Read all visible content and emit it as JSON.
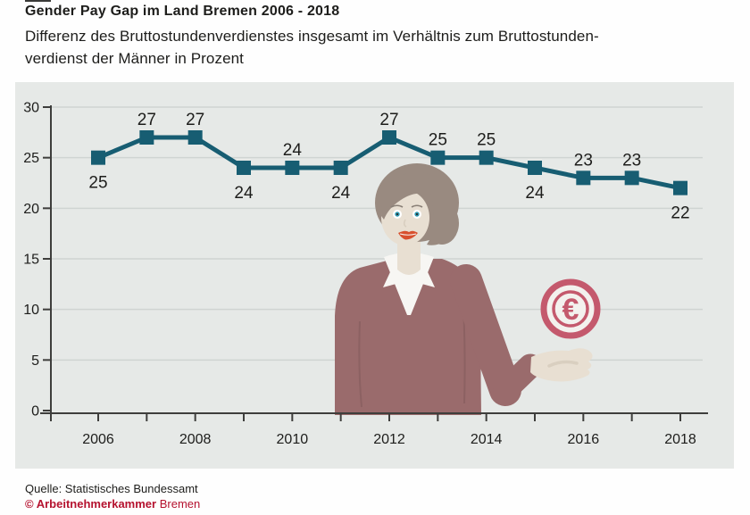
{
  "header": {
    "title": "Gender Pay Gap im Land Bremen 2006 - 2018",
    "subtitle_line1": "Differenz des Bruttostundenverdienstes insgesamt im Verhältnis zum Bruttostunden-",
    "subtitle_line2": "verdienst der Männer in Prozent"
  },
  "chart_data": {
    "type": "line",
    "title": "Gender Pay Gap im Land Bremen 2006 - 2018",
    "x": [
      2006,
      2007,
      2008,
      2009,
      2010,
      2011,
      2012,
      2013,
      2014,
      2015,
      2016,
      2017,
      2018
    ],
    "values": [
      25,
      27,
      27,
      24,
      24,
      24,
      27,
      25,
      25,
      24,
      23,
      23,
      22
    ],
    "label_positions": [
      "below",
      "above",
      "above",
      "below",
      "above",
      "below",
      "above",
      "above",
      "above",
      "below",
      "above",
      "above",
      "below"
    ],
    "xlabel": "",
    "ylabel": "",
    "ylim": [
      0,
      30
    ],
    "yticks": [
      0,
      5,
      10,
      15,
      20,
      25,
      30
    ],
    "xtick_labeled_years": [
      2006,
      2008,
      2010,
      2012,
      2014,
      2016,
      2018
    ],
    "grid": true,
    "legend": "none",
    "marker": "square",
    "unit": "Prozent"
  },
  "illustration": {
    "figure": "woman-presenting-with-open-hand",
    "coin_symbol": "€"
  },
  "footer": {
    "source": "Quelle: Statistisches Bundessamt",
    "copyright_bold": "© Arbeitnehmerkammer",
    "copyright_city": "Bremen"
  },
  "colors": {
    "text": "#1d1d1b",
    "red": "#b5122f",
    "panel_bg": "#e6e9e7",
    "gridline": "#cfd4d2",
    "axis": "#3e3e3c",
    "line": "#175d72",
    "hair": "#998a80",
    "skin": "#e8dfd2",
    "skin_shadow": "#d9cfc0",
    "sweater": "#9a6b6c",
    "sweater_fold": "#8c6162",
    "shirt": "#f7f6f3",
    "iris": "#2f9ab2",
    "lips": "#d8502e",
    "brow": "#8a8077",
    "coin": "#c4596d",
    "coin_face": "#f3f1ee"
  }
}
